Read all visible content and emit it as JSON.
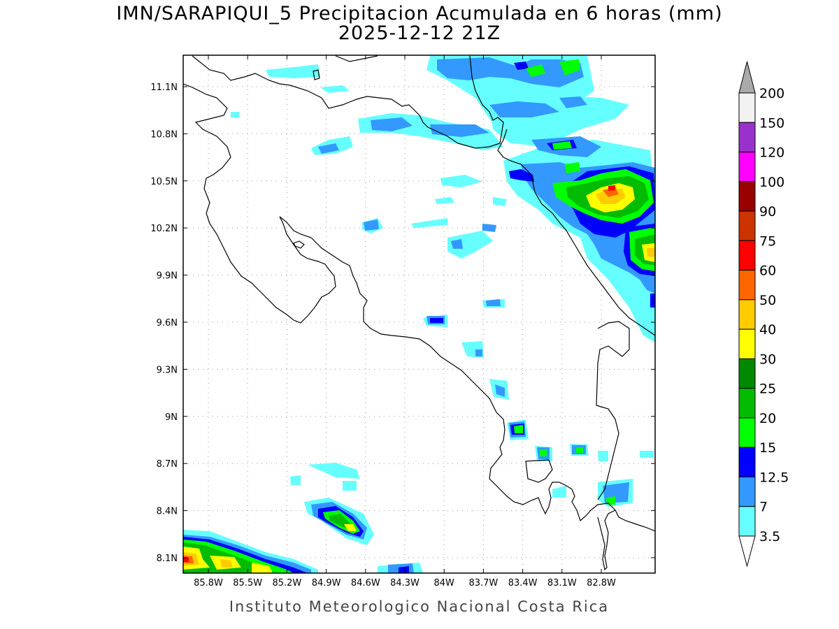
{
  "title": {
    "line1": "IMN/SARAPIQUI_5 Precipitacion Acumulada en 6 horas (mm)",
    "line2": "2025-12-12 21Z"
  },
  "footer": "Instituto Meteorologico Nacional Costa Rica",
  "map": {
    "lon_labels": [
      "85.8W",
      "85.5W",
      "85.2W",
      "84.9W",
      "84.6W",
      "84.3W",
      "84W",
      "83.7W",
      "83.4W",
      "83.1W",
      "82.8W"
    ],
    "lat_labels": [
      "11.1N",
      "10.8N",
      "10.5N",
      "10.2N",
      "9.9N",
      "9.6N",
      "9.3N",
      "9N",
      "8.7N",
      "8.4N",
      "8.1N"
    ],
    "grid": "dotted"
  },
  "colorbar": {
    "labels": [
      "200",
      "150",
      "120",
      "100",
      "90",
      "75",
      "60",
      "50",
      "40",
      "30",
      "25",
      "20",
      "15",
      "12.5",
      "7",
      "3.5"
    ],
    "colors": [
      "#f2f2f2",
      "#9932cc",
      "#ff00ff",
      "#990000",
      "#cc3300",
      "#ff0000",
      "#ff6600",
      "#ffcc00",
      "#ffff00",
      "#008800",
      "#00bb00",
      "#00ff00",
      "#0000ff",
      "#3399ff",
      "#66ffff"
    ],
    "over_color": "#aaaaaa",
    "under_color": "#ffffff"
  }
}
